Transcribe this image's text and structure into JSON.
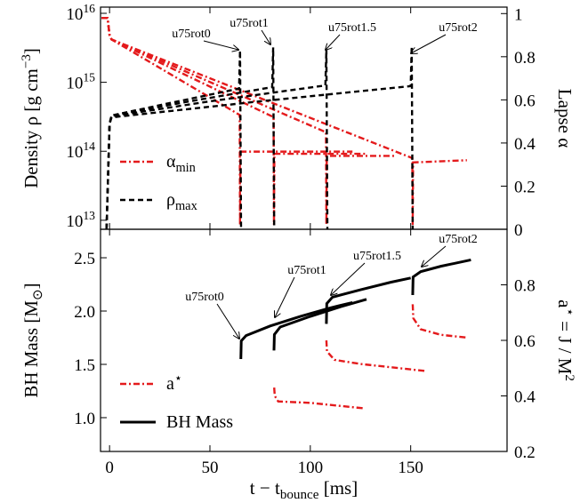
{
  "chart_data": [
    {
      "type": "line",
      "ylabel": "Density ρ [g cm^{−3}]",
      "y2label": "Lapse α",
      "ylog": true,
      "xlim": [
        -4.5,
        198
      ],
      "ylim": [
        7400000000000.0,
        1.23e+16
      ],
      "yticks": [
        {
          "value": 10000000000000.0,
          "label": "10^{13}"
        },
        {
          "value": 100000000000000.0,
          "label": "10^{14}"
        },
        {
          "value": 1000000000000000.0,
          "label": "10^{15}"
        },
        {
          "value": 1e+16,
          "label": "10^{16}"
        }
      ],
      "y2lim": [
        0,
        1.03
      ],
      "y2ticks": [
        0,
        0.2,
        0.4,
        0.6,
        0.8,
        1
      ],
      "legend": "lower left",
      "series": [
        {
          "name": "α_{min}",
          "color": "#e41a1c",
          "style": "dash-dot",
          "axis": "y2",
          "lines": [
            {
              "x": [
                -4,
                -1,
                0,
                1,
                64.8,
                65,
                65.2,
                121
              ],
              "values": [
                0.98,
                0.98,
                0.9,
                0.88,
                0.53,
                0.02,
                0.36,
                0.36
              ]
            },
            {
              "x": [
                -4,
                -1,
                0,
                1,
                81.7,
                81.9,
                82.1,
                128
              ],
              "values": [
                0.98,
                0.98,
                0.9,
                0.88,
                0.52,
                0.02,
                0.35,
                0.35
              ]
            },
            {
              "x": [
                -4,
                -1,
                0,
                1,
                107.8,
                108,
                108.2,
                142
              ],
              "values": [
                0.98,
                0.98,
                0.9,
                0.88,
                0.45,
                0.02,
                0.34,
                0.34
              ]
            },
            {
              "x": [
                -4,
                -1,
                0,
                1,
                150.8,
                151,
                151.2,
                178
              ],
              "values": [
                0.98,
                0.98,
                0.9,
                0.88,
                0.33,
                0.02,
                0.31,
                0.32
              ]
            }
          ]
        },
        {
          "name": "ρ_{max}",
          "color": "#000000",
          "style": "dashed",
          "lines": [
            {
              "x": [
                -1.5,
                0,
                1,
                30,
                64.5,
                65,
                65.5
              ],
              "values": [
                7500000000000.0,
                250000000000000.0,
                330000000000000.0,
                500000000000000.0,
                810000000000000.0,
                2900000000000000.0,
                7500000000000.0
              ]
            },
            {
              "x": [
                -1.5,
                0,
                1,
                40,
                81,
                81.5,
                82
              ],
              "values": [
                7500000000000.0,
                250000000000000.0,
                330000000000000.0,
                530000000000000.0,
                850000000000000.0,
                3200000000000000.0,
                7500000000000.0
              ]
            },
            {
              "x": [
                -1.5,
                0,
                1,
                50,
                107.5,
                108,
                108.5
              ],
              "values": [
                7500000000000.0,
                250000000000000.0,
                320000000000000.0,
                530000000000000.0,
                900000000000000.0,
                3000000000000000.0,
                7500000000000.0
              ]
            },
            {
              "x": [
                -1.5,
                0,
                1,
                75,
                150,
                150.5,
                151
              ],
              "values": [
                7500000000000.0,
                250000000000000.0,
                310000000000000.0,
                530000000000000.0,
                880000000000000.0,
                3300000000000000.0,
                7500000000000.0
              ]
            }
          ]
        }
      ],
      "annotations": [
        "u75rot0",
        "u75rot1",
        "u75rot1.5",
        "u75rot2"
      ]
    },
    {
      "type": "line",
      "xlabel": "t − t_{bounce} [ms]",
      "ylabel": "BH Mass [M_{⊙}]",
      "y2label": "a^{⋆} = J / M^{2}",
      "xlim": [
        -4.5,
        198
      ],
      "xticks": [
        0,
        50,
        100,
        150
      ],
      "ylim": [
        0.683,
        2.767
      ],
      "yticks": [
        {
          "value": 1,
          "label": "1.0"
        },
        1.5,
        {
          "value": 2,
          "label": "2.0"
        },
        2.5
      ],
      "y2lim": [
        0.2,
        1.0
      ],
      "y2ticks": [
        0.2,
        0.4,
        0.6,
        0.8
      ],
      "legend": "lower left",
      "series": [
        {
          "name": "a^{⋆}",
          "color": "#e41a1c",
          "style": "dash-dot",
          "axis": "y2",
          "lines": [
            {
              "x": [
                82,
                82.3,
                84,
                100,
                127
              ],
              "values": [
                0.43,
                0.4,
                0.38,
                0.375,
                0.355
              ]
            },
            {
              "x": [
                108,
                108.3,
                112,
                125,
                157
              ],
              "values": [
                0.6,
                0.56,
                0.53,
                0.515,
                0.49
              ]
            },
            {
              "x": [
                151,
                151.3,
                155,
                165,
                178
              ],
              "values": [
                0.73,
                0.68,
                0.64,
                0.62,
                0.61
              ]
            }
          ]
        },
        {
          "name": "BH Mass",
          "color": "#000000",
          "style": "solid",
          "lines": [
            {
              "x": [
                65.4,
                65.6,
                68,
                80,
                95,
                110,
                121
              ],
              "values": [
                1.55,
                1.72,
                1.77,
                1.86,
                1.95,
                2.03,
                2.08
              ]
            },
            {
              "x": [
                81.9,
                82.1,
                85,
                100,
                115,
                128
              ],
              "values": [
                1.63,
                1.78,
                1.85,
                1.95,
                2.04,
                2.11
              ]
            },
            {
              "x": [
                108,
                108.2,
                111,
                125,
                140,
                150
              ],
              "values": [
                1.88,
                2.07,
                2.13,
                2.2,
                2.27,
                2.31
              ]
            },
            {
              "x": [
                151,
                151.2,
                155,
                165,
                180
              ],
              "values": [
                2.15,
                2.32,
                2.37,
                2.42,
                2.48
              ]
            }
          ]
        }
      ],
      "annotations": [
        "u75rot0",
        "u75rot1",
        "u75rot1.5",
        "u75rot2"
      ]
    }
  ]
}
